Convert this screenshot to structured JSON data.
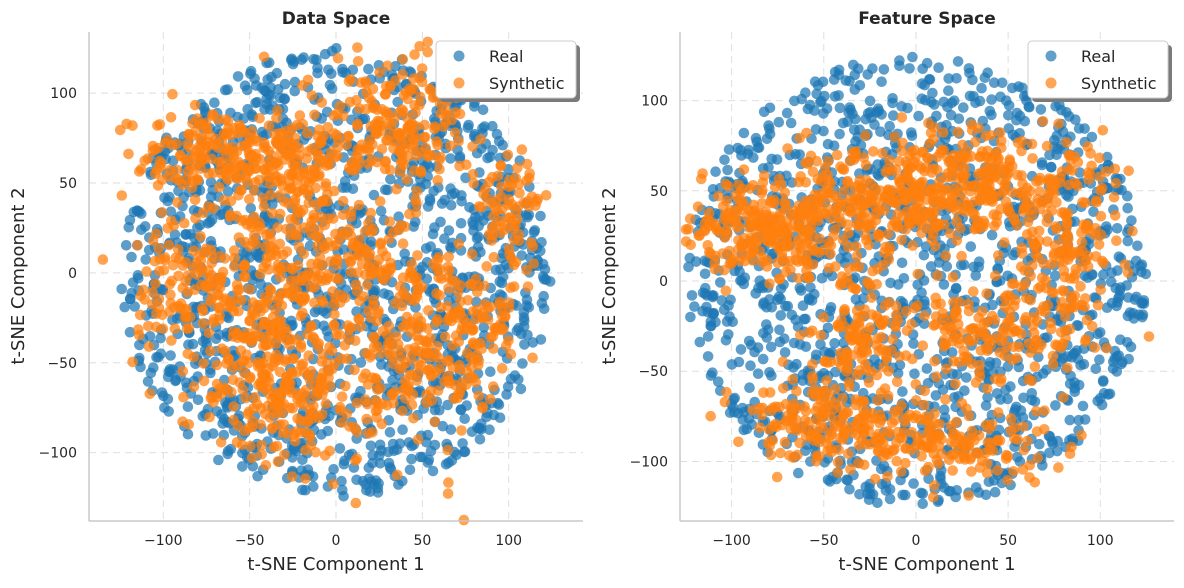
{
  "chart_data": [
    {
      "type": "scatter",
      "title": "Data Space",
      "xlabel": "t-SNE Component 1",
      "ylabel": "t-SNE Component 2",
      "xlim": [
        -143,
        143
      ],
      "ylim": [
        -138,
        134
      ],
      "xticks": [
        -100,
        -50,
        0,
        50,
        100
      ],
      "yticks": [
        -100,
        -50,
        0,
        50,
        100
      ],
      "grid": true,
      "legend_position": "top-right",
      "series": [
        {
          "name": "Real",
          "color": "#1f77b4",
          "distribution": "uniform-disk",
          "center": [
            0,
            0
          ],
          "radius": 125,
          "count": 1400
        },
        {
          "name": "Synthetic",
          "color": "#ff7f0e",
          "distribution": "clustered",
          "count": 1500,
          "clusters": [
            {
              "center": [
                -70,
                65
              ],
              "spread": [
                22,
                12
              ],
              "weight": 0.12
            },
            {
              "center": [
                -20,
                55
              ],
              "spread": [
                15,
                22
              ],
              "weight": 0.1
            },
            {
              "center": [
                35,
                82
              ],
              "spread": [
                20,
                18
              ],
              "weight": 0.13
            },
            {
              "center": [
                100,
                35
              ],
              "spread": [
                10,
                15
              ],
              "weight": 0.05
            },
            {
              "center": [
                -80,
                -10
              ],
              "spread": [
                20,
                20
              ],
              "weight": 0.1
            },
            {
              "center": [
                -40,
                -20
              ],
              "spread": [
                15,
                30
              ],
              "weight": 0.1
            },
            {
              "center": [
                -30,
                -70
              ],
              "spread": [
                22,
                18
              ],
              "weight": 0.12
            },
            {
              "center": [
                40,
                -45
              ],
              "spread": [
                20,
                30
              ],
              "weight": 0.12
            },
            {
              "center": [
                80,
                -30
              ],
              "spread": [
                14,
                18
              ],
              "weight": 0.07
            },
            {
              "center": [
                20,
                10
              ],
              "spread": [
                15,
                15
              ],
              "weight": 0.05
            },
            {
              "center": [
                -5,
                -5
              ],
              "spread": [
                10,
                25
              ],
              "weight": 0.04
            }
          ]
        }
      ]
    },
    {
      "type": "scatter",
      "title": "Feature Space",
      "xlabel": "t-SNE Component 1",
      "ylabel": "t-SNE Component 2",
      "xlim": [
        -128,
        140
      ],
      "ylim": [
        -133,
        138
      ],
      "xticks": [
        -100,
        -50,
        0,
        50,
        100
      ],
      "yticks": [
        -100,
        -50,
        0,
        50,
        100
      ],
      "grid": true,
      "legend_position": "top-right",
      "series": [
        {
          "name": "Real",
          "color": "#1f77b4",
          "distribution": "uniform-disk",
          "center": [
            0,
            0
          ],
          "radius": 125,
          "count": 1400
        },
        {
          "name": "Synthetic",
          "color": "#ff7f0e",
          "distribution": "clustered",
          "count": 1500,
          "clusters": [
            {
              "center": [
                -80,
                30
              ],
              "spread": [
                25,
                15
              ],
              "weight": 0.18
            },
            {
              "center": [
                -20,
                45
              ],
              "spread": [
                25,
                15
              ],
              "weight": 0.14
            },
            {
              "center": [
                30,
                55
              ],
              "spread": [
                30,
                15
              ],
              "weight": 0.18
            },
            {
              "center": [
                80,
                15
              ],
              "spread": [
                15,
                25
              ],
              "weight": 0.1
            },
            {
              "center": [
                -30,
                -30
              ],
              "spread": [
                15,
                25
              ],
              "weight": 0.1
            },
            {
              "center": [
                40,
                -30
              ],
              "spread": [
                25,
                15
              ],
              "weight": 0.1
            },
            {
              "center": [
                -55,
                -75
              ],
              "spread": [
                20,
                10
              ],
              "weight": 0.08
            },
            {
              "center": [
                10,
                -90
              ],
              "spread": [
                35,
                10
              ],
              "weight": 0.12
            }
          ]
        }
      ]
    }
  ]
}
